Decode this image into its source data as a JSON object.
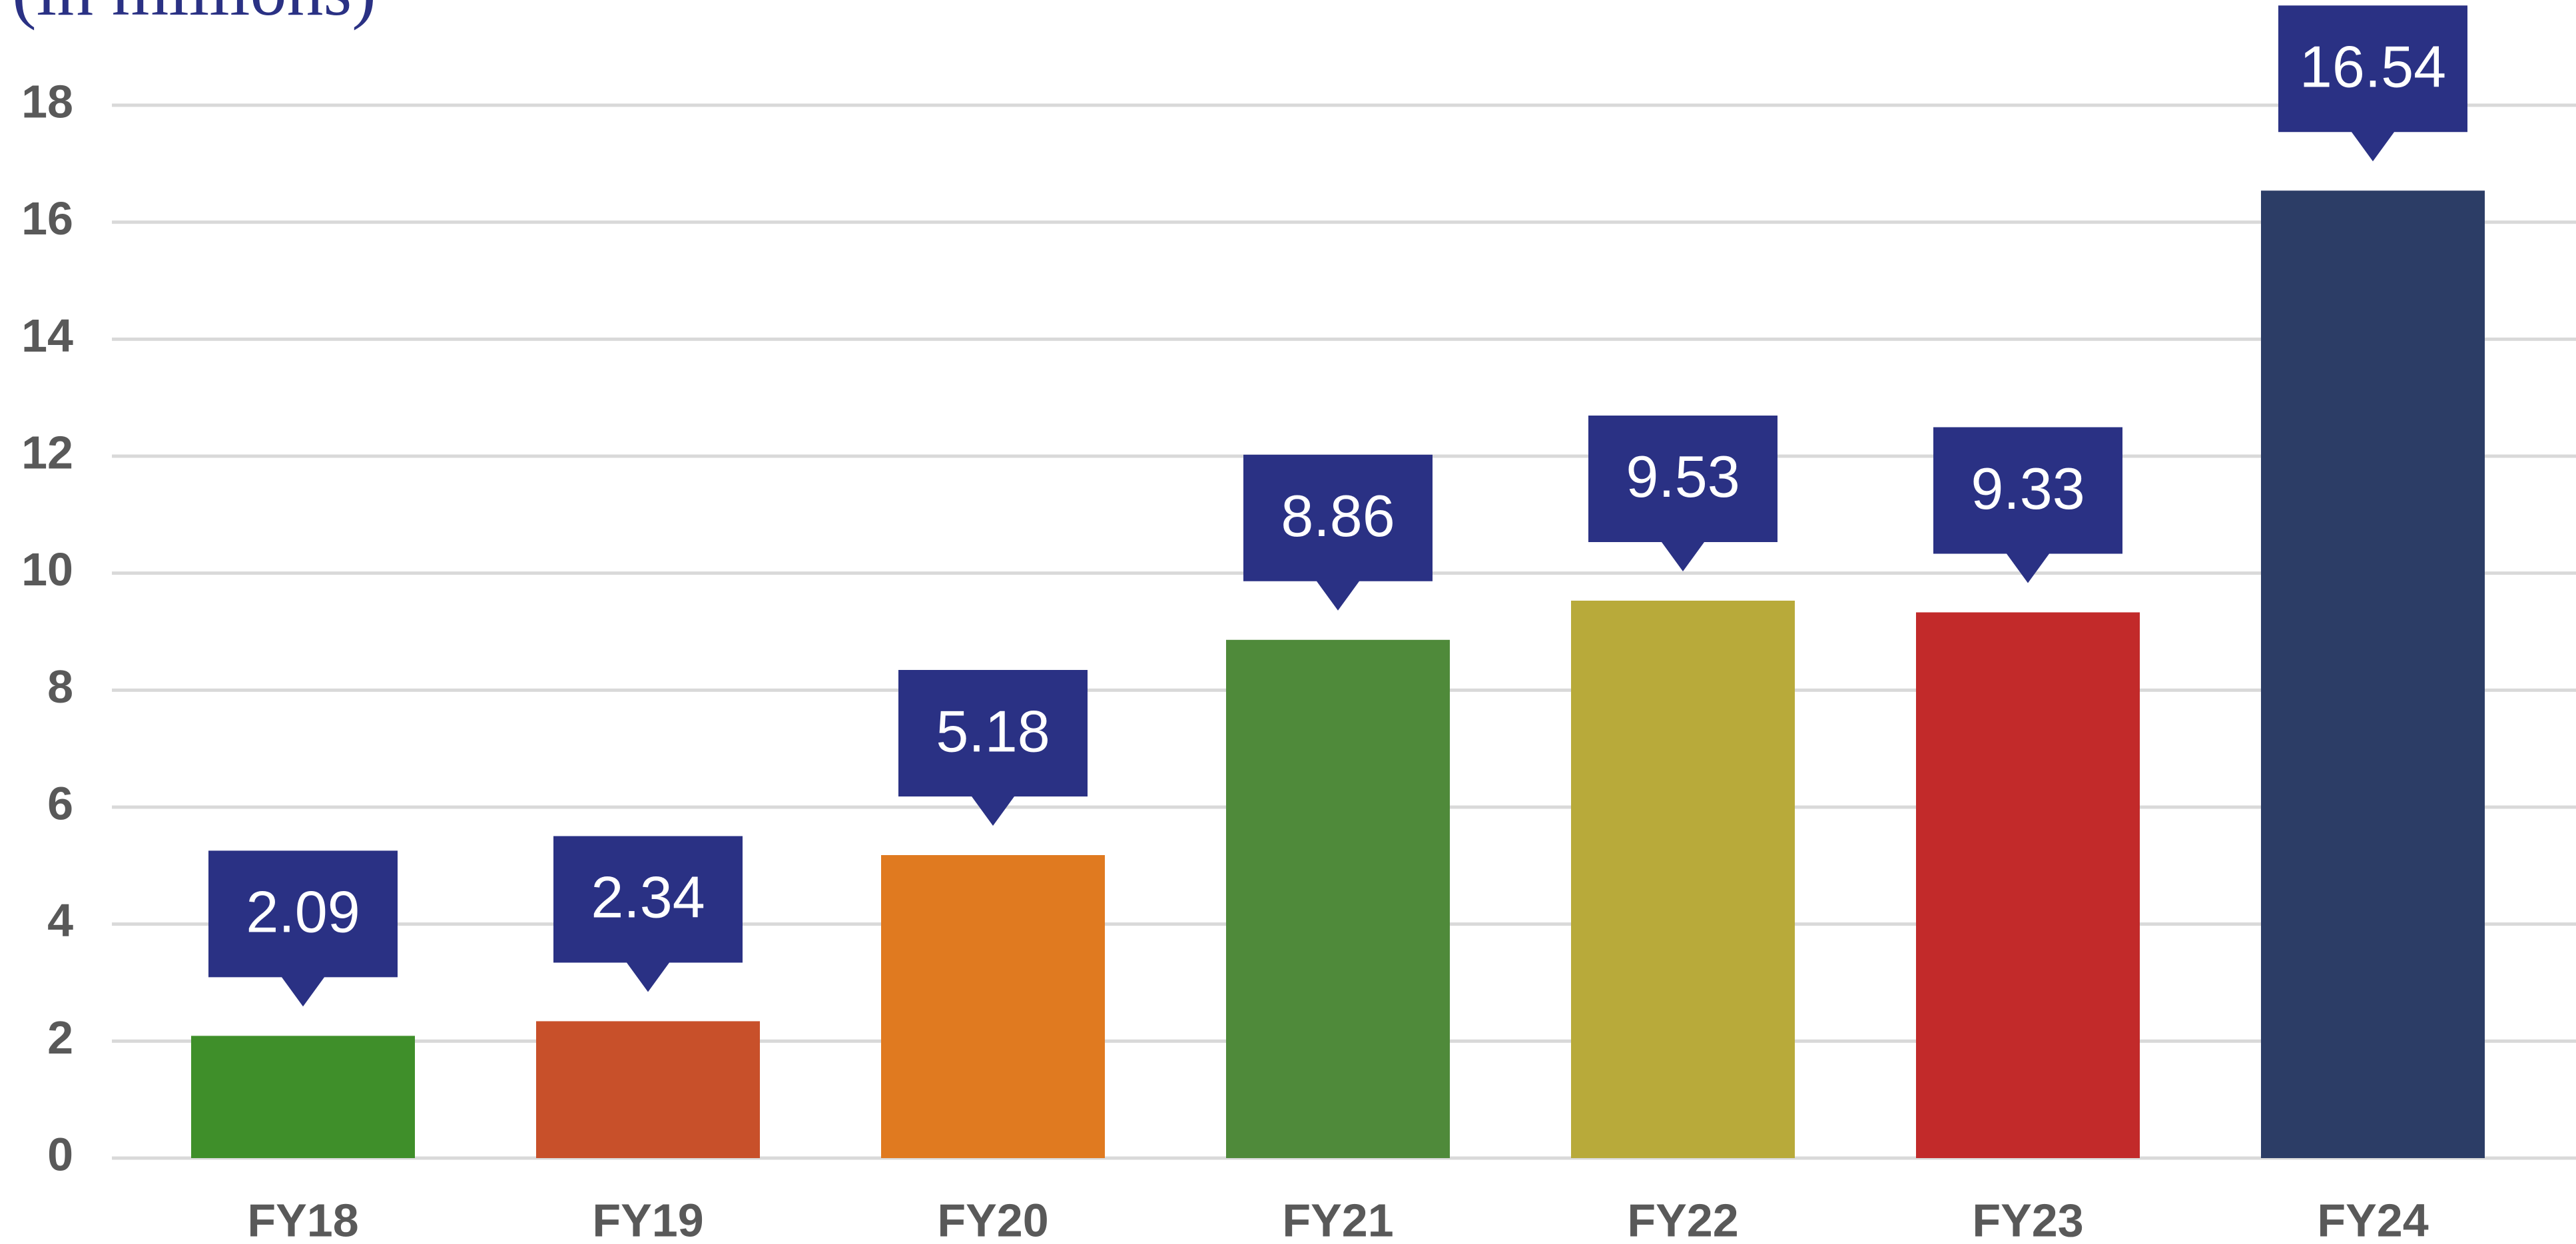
{
  "chart_data": {
    "type": "bar",
    "title": "(in millions)",
    "categories": [
      "FY18",
      "FY19",
      "FY20",
      "FY21",
      "FY22",
      "FY23",
      "FY24"
    ],
    "values": [
      2.09,
      2.34,
      5.18,
      8.86,
      9.53,
      9.33,
      16.54
    ],
    "colors": [
      "#3f8f2a",
      "#c8502a",
      "#e07a20",
      "#4f8a3a",
      "#b8aa3a",
      "#c22a2a",
      "#2c3d66"
    ],
    "label_color": "#2a3184",
    "ylim": [
      0,
      18
    ],
    "yticks": [
      0,
      2,
      4,
      6,
      8,
      10,
      12,
      14,
      16,
      18
    ],
    "grid": true
  }
}
